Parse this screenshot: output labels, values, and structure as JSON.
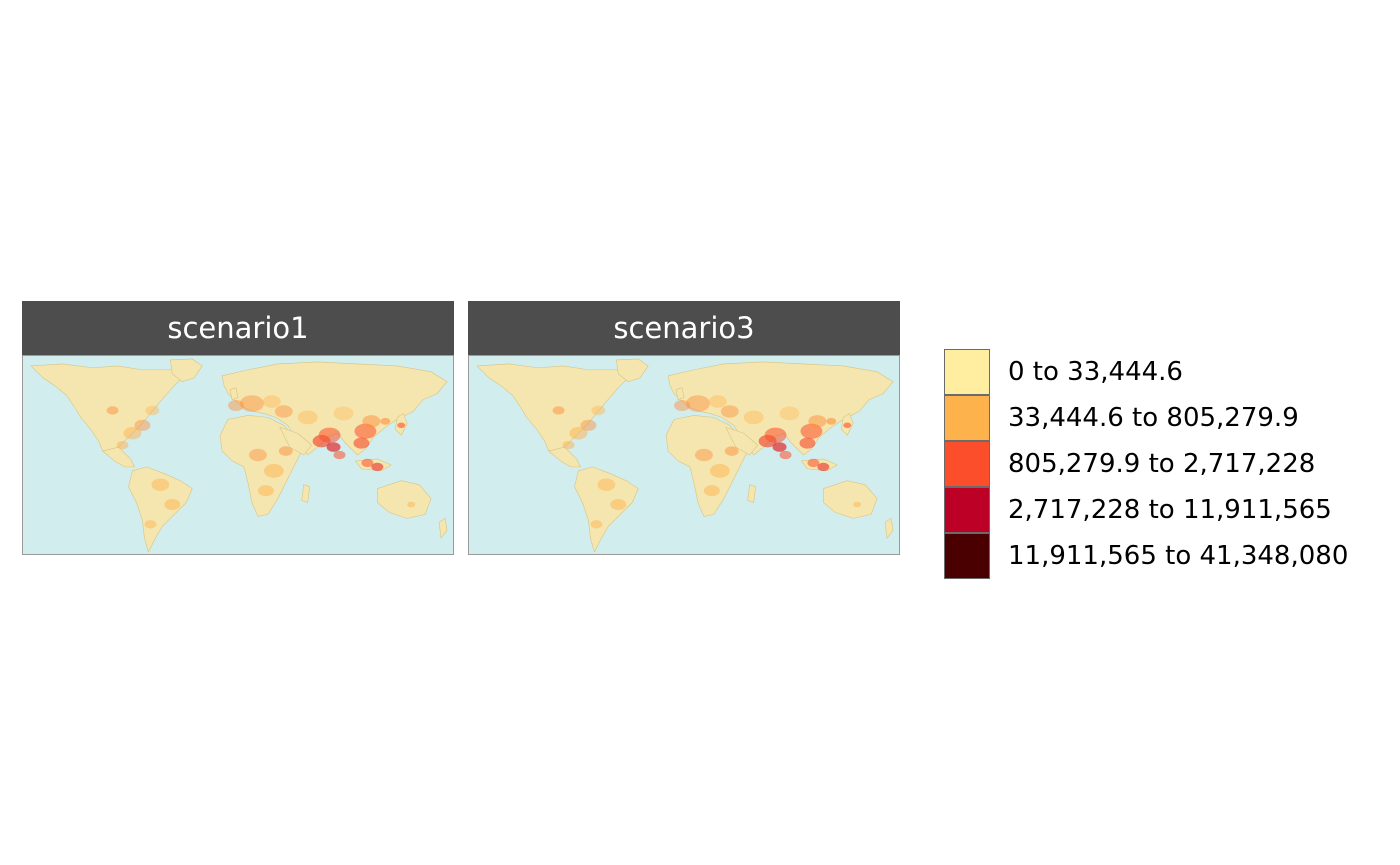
{
  "panels": [
    {
      "title": "scenario1"
    },
    {
      "title": "scenario3"
    }
  ],
  "legend": {
    "items": [
      {
        "label": "0 to 33,444.6",
        "color": "#ffeda0"
      },
      {
        "label": "33,444.6 to 805,279.9",
        "color": "#feb24c"
      },
      {
        "label": "805,279.9 to 2,717,228",
        "color": "#fc4e2a"
      },
      {
        "label": "2,717,228 to 11,911,565",
        "color": "#bd0026"
      },
      {
        "label": "11,911,565 to 41,348,080",
        "color": "#4a0000"
      }
    ]
  },
  "colors": {
    "ocean": "#d2edee",
    "land": "#f5e6b0",
    "strip": "#4d4d4d"
  }
}
